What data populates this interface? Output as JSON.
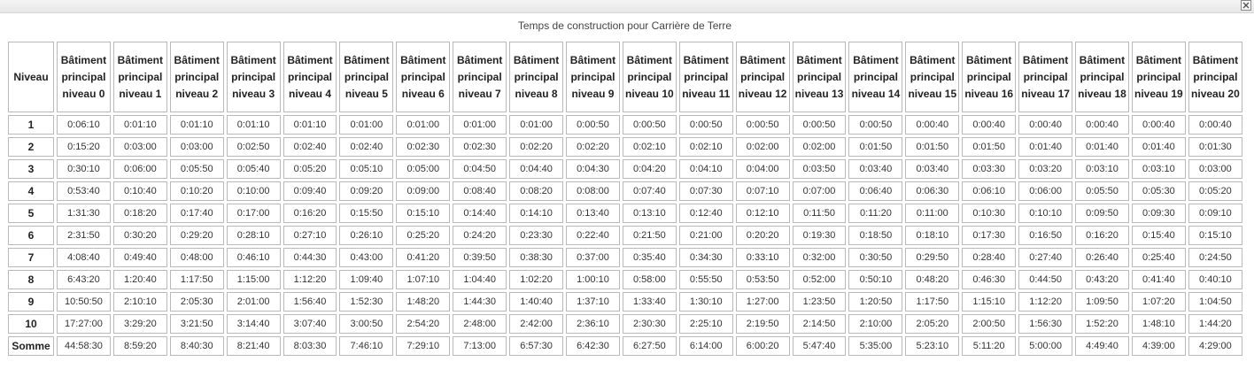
{
  "title": "Temps de construction pour Carrière de Terre",
  "icons": {
    "close": "close-icon"
  },
  "header": {
    "niveau": "Niveau",
    "columns": [
      "Bâtiment principal niveau 0",
      "Bâtiment principal niveau 1",
      "Bâtiment principal niveau 2",
      "Bâtiment principal niveau 3",
      "Bâtiment principal niveau 4",
      "Bâtiment principal niveau 5",
      "Bâtiment principal niveau 6",
      "Bâtiment principal niveau 7",
      "Bâtiment principal niveau 8",
      "Bâtiment principal niveau 9",
      "Bâtiment principal niveau 10",
      "Bâtiment principal niveau 11",
      "Bâtiment principal niveau 12",
      "Bâtiment principal niveau 13",
      "Bâtiment principal niveau 14",
      "Bâtiment principal niveau 15",
      "Bâtiment principal niveau 16",
      "Bâtiment principal niveau 17",
      "Bâtiment principal niveau 18",
      "Bâtiment principal niveau 19",
      "Bâtiment principal niveau 20"
    ]
  },
  "rows": [
    {
      "label": "1",
      "values": [
        "0:06:10",
        "0:01:10",
        "0:01:10",
        "0:01:10",
        "0:01:10",
        "0:01:00",
        "0:01:00",
        "0:01:00",
        "0:01:00",
        "0:00:50",
        "0:00:50",
        "0:00:50",
        "0:00:50",
        "0:00:50",
        "0:00:50",
        "0:00:40",
        "0:00:40",
        "0:00:40",
        "0:00:40",
        "0:00:40",
        "0:00:40"
      ]
    },
    {
      "label": "2",
      "values": [
        "0:15:20",
        "0:03:00",
        "0:03:00",
        "0:02:50",
        "0:02:40",
        "0:02:40",
        "0:02:30",
        "0:02:30",
        "0:02:20",
        "0:02:20",
        "0:02:10",
        "0:02:10",
        "0:02:00",
        "0:02:00",
        "0:01:50",
        "0:01:50",
        "0:01:50",
        "0:01:40",
        "0:01:40",
        "0:01:40",
        "0:01:30"
      ]
    },
    {
      "label": "3",
      "values": [
        "0:30:10",
        "0:06:00",
        "0:05:50",
        "0:05:40",
        "0:05:20",
        "0:05:10",
        "0:05:00",
        "0:04:50",
        "0:04:40",
        "0:04:30",
        "0:04:20",
        "0:04:10",
        "0:04:00",
        "0:03:50",
        "0:03:40",
        "0:03:40",
        "0:03:30",
        "0:03:20",
        "0:03:10",
        "0:03:10",
        "0:03:00"
      ]
    },
    {
      "label": "4",
      "values": [
        "0:53:40",
        "0:10:40",
        "0:10:20",
        "0:10:00",
        "0:09:40",
        "0:09:20",
        "0:09:00",
        "0:08:40",
        "0:08:20",
        "0:08:00",
        "0:07:40",
        "0:07:30",
        "0:07:10",
        "0:07:00",
        "0:06:40",
        "0:06:30",
        "0:06:10",
        "0:06:00",
        "0:05:50",
        "0:05:30",
        "0:05:20"
      ]
    },
    {
      "label": "5",
      "values": [
        "1:31:30",
        "0:18:20",
        "0:17:40",
        "0:17:00",
        "0:16:20",
        "0:15:50",
        "0:15:10",
        "0:14:40",
        "0:14:10",
        "0:13:40",
        "0:13:10",
        "0:12:40",
        "0:12:10",
        "0:11:50",
        "0:11:20",
        "0:11:00",
        "0:10:30",
        "0:10:10",
        "0:09:50",
        "0:09:30",
        "0:09:10"
      ]
    },
    {
      "label": "6",
      "values": [
        "2:31:50",
        "0:30:20",
        "0:29:20",
        "0:28:10",
        "0:27:10",
        "0:26:10",
        "0:25:20",
        "0:24:20",
        "0:23:30",
        "0:22:40",
        "0:21:50",
        "0:21:00",
        "0:20:20",
        "0:19:30",
        "0:18:50",
        "0:18:10",
        "0:17:30",
        "0:16:50",
        "0:16:20",
        "0:15:40",
        "0:15:10"
      ]
    },
    {
      "label": "7",
      "values": [
        "4:08:40",
        "0:49:40",
        "0:48:00",
        "0:46:10",
        "0:44:30",
        "0:43:00",
        "0:41:20",
        "0:39:50",
        "0:38:30",
        "0:37:00",
        "0:35:40",
        "0:34:30",
        "0:33:10",
        "0:32:00",
        "0:30:50",
        "0:29:50",
        "0:28:40",
        "0:27:40",
        "0:26:40",
        "0:25:40",
        "0:24:50"
      ]
    },
    {
      "label": "8",
      "values": [
        "6:43:20",
        "1:20:40",
        "1:17:50",
        "1:15:00",
        "1:12:20",
        "1:09:40",
        "1:07:10",
        "1:04:40",
        "1:02:20",
        "1:00:10",
        "0:58:00",
        "0:55:50",
        "0:53:50",
        "0:52:00",
        "0:50:10",
        "0:48:20",
        "0:46:30",
        "0:44:50",
        "0:43:20",
        "0:41:40",
        "0:40:10"
      ]
    },
    {
      "label": "9",
      "values": [
        "10:50:50",
        "2:10:10",
        "2:05:30",
        "2:01:00",
        "1:56:40",
        "1:52:30",
        "1:48:20",
        "1:44:30",
        "1:40:40",
        "1:37:10",
        "1:33:40",
        "1:30:10",
        "1:27:00",
        "1:23:50",
        "1:20:50",
        "1:17:50",
        "1:15:10",
        "1:12:20",
        "1:09:50",
        "1:07:20",
        "1:04:50"
      ]
    },
    {
      "label": "10",
      "values": [
        "17:27:00",
        "3:29:20",
        "3:21:50",
        "3:14:40",
        "3:07:40",
        "3:00:50",
        "2:54:20",
        "2:48:00",
        "2:42:00",
        "2:36:10",
        "2:30:30",
        "2:25:10",
        "2:19:50",
        "2:14:50",
        "2:10:00",
        "2:05:20",
        "2:00:50",
        "1:56:30",
        "1:52:20",
        "1:48:10",
        "1:44:20"
      ]
    },
    {
      "label": "Somme",
      "values": [
        "44:58:30",
        "8:59:20",
        "8:40:30",
        "8:21:40",
        "8:03:30",
        "7:46:10",
        "7:29:10",
        "7:13:00",
        "6:57:30",
        "6:42:30",
        "6:27:50",
        "6:14:00",
        "6:00:20",
        "5:47:40",
        "5:35:00",
        "5:23:10",
        "5:11:20",
        "5:00:00",
        "4:49:40",
        "4:39:00",
        "4:29:00"
      ]
    }
  ]
}
